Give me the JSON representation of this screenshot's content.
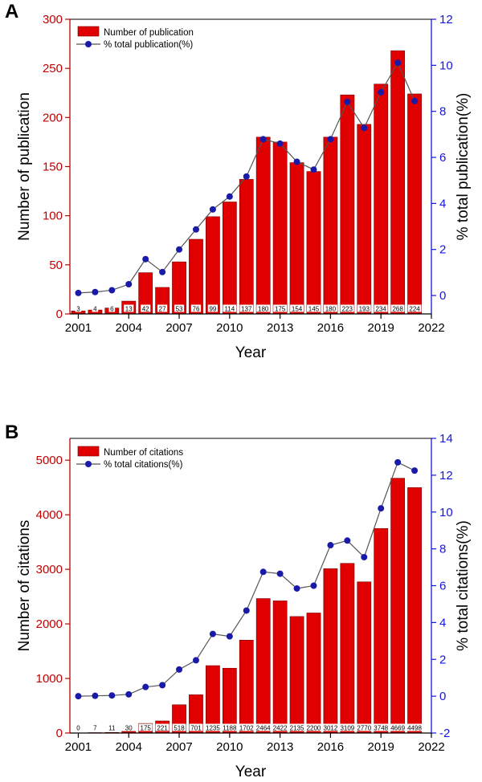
{
  "colors": {
    "bar": "#e00000",
    "bar_edge": "#7a0000",
    "line": "#555555",
    "marker": "#1a1aa8",
    "left_axis": "#c00000",
    "right_axis": "#1515e0"
  },
  "chart_data": [
    {
      "panel": "A",
      "type": "bar",
      "title": "",
      "xlabel": "Year",
      "ylabel": "Number of publication",
      "y2label": "% total publication(%)",
      "categories": [
        2001,
        2002,
        2003,
        2004,
        2005,
        2006,
        2007,
        2008,
        2009,
        2010,
        2011,
        2012,
        2013,
        2014,
        2015,
        2016,
        2017,
        2018,
        2019,
        2020,
        2021
      ],
      "x_ticks": [
        2001,
        2004,
        2007,
        2010,
        2013,
        2016,
        2019,
        2022
      ],
      "xlim": [
        2000.5,
        2022
      ],
      "ylim": [
        0,
        300
      ],
      "y_ticks": [
        0,
        50,
        100,
        150,
        200,
        250,
        300
      ],
      "y2lim": [
        -0.8,
        12
      ],
      "y2_ticks": [
        0,
        2,
        4,
        6,
        8,
        10,
        12
      ],
      "legend": [
        "Number of publication",
        "% total publication(%)"
      ],
      "legend_position": "top-left",
      "series": [
        {
          "name": "Number of publication",
          "kind": "bar",
          "axis": "left",
          "values": [
            3,
            4,
            6,
            13,
            42,
            27,
            53,
            76,
            99,
            114,
            137,
            180,
            175,
            154,
            145,
            180,
            223,
            193,
            234,
            268,
            224
          ]
        },
        {
          "name": "% total publication(%)",
          "kind": "line",
          "axis": "right",
          "values": [
            0.11,
            0.15,
            0.23,
            0.49,
            1.58,
            1.02,
            2.0,
            2.87,
            3.74,
            4.3,
            5.17,
            6.79,
            6.6,
            5.81,
            5.47,
            6.79,
            8.41,
            7.28,
            8.83,
            10.11,
            8.45
          ]
        }
      ],
      "data_labels": [
        "3",
        "4",
        "6",
        "13",
        "42",
        "27",
        "53",
        "76",
        "99",
        "114",
        "137",
        "180",
        "175",
        "154",
        "145",
        "180",
        "223",
        "193",
        "234",
        "268",
        "224"
      ]
    },
    {
      "panel": "B",
      "type": "bar",
      "title": "",
      "xlabel": "Year",
      "ylabel": "Number of citations",
      "y2label": "% total citations(%)",
      "categories": [
        2001,
        2002,
        2003,
        2004,
        2005,
        2006,
        2007,
        2008,
        2009,
        2010,
        2011,
        2012,
        2013,
        2014,
        2015,
        2016,
        2017,
        2018,
        2019,
        2020,
        2021
      ],
      "x_ticks": [
        2001,
        2004,
        2007,
        2010,
        2013,
        2016,
        2019,
        2022
      ],
      "xlim": [
        2000.5,
        2022
      ],
      "ylim": [
        0,
        5400
      ],
      "y_ticks": [
        0,
        1000,
        2000,
        3000,
        4000,
        5000
      ],
      "y2lim": [
        -2,
        14
      ],
      "y2_ticks": [
        -2,
        0,
        2,
        4,
        6,
        8,
        10,
        12,
        14
      ],
      "legend": [
        "Number of citations",
        "% total citations(%)"
      ],
      "legend_position": "top-left",
      "series": [
        {
          "name": "Number of citations",
          "kind": "bar",
          "axis": "left",
          "values": [
            0,
            7,
            11,
            30,
            175,
            221,
            518,
            701,
            1235,
            1188,
            1702,
            2464,
            2422,
            2135,
            2200,
            3012,
            3109,
            2770,
            3748,
            4669,
            4498
          ]
        },
        {
          "name": "% total citations(%)",
          "kind": "line",
          "axis": "right",
          "values": [
            0.0,
            0.02,
            0.04,
            0.1,
            0.5,
            0.6,
            1.45,
            1.95,
            3.38,
            3.25,
            4.65,
            6.75,
            6.65,
            5.85,
            6.0,
            8.2,
            8.45,
            7.55,
            10.2,
            12.7,
            12.25
          ]
        }
      ],
      "data_labels": [
        "0",
        "7",
        "11",
        "30",
        "175",
        "221",
        "518",
        "701",
        "1235",
        "1188",
        "1702",
        "2464",
        "2422",
        "2135",
        "2200",
        "3012",
        "3109",
        "2770",
        "3748",
        "4669",
        "4498"
      ]
    }
  ]
}
